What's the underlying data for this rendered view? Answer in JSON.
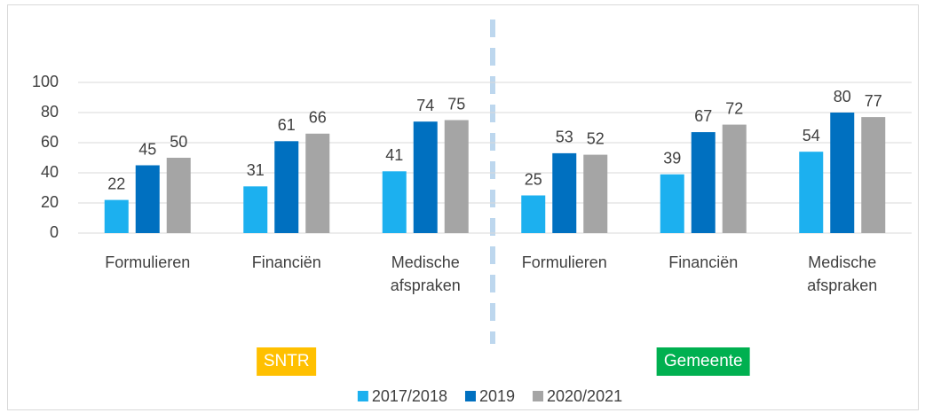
{
  "chart_data": {
    "type": "bar",
    "categories": [
      "Formulieren",
      "Financiën",
      "Medische afspraken",
      "Formulieren",
      "Financiën",
      "Medische afspraken"
    ],
    "series": [
      {
        "name": "2017/2018",
        "color": "#1cb0ef",
        "values": [
          22,
          31,
          41,
          25,
          39,
          54
        ]
      },
      {
        "name": "2019",
        "color": "#0070c0",
        "values": [
          45,
          61,
          74,
          53,
          67,
          80
        ]
      },
      {
        "name": "2020/2021",
        "color": "#a5a5a5",
        "values": [
          50,
          66,
          75,
          52,
          72,
          77
        ]
      }
    ],
    "ylim": [
      0,
      100
    ],
    "yticks": [
      0,
      20,
      40,
      60,
      80,
      100
    ],
    "grid": true,
    "annotations": [
      {
        "text": "SNTR",
        "color": "#ffc000"
      },
      {
        "text": "Gemeente",
        "color": "#00b050"
      }
    ],
    "legend": "bottom"
  }
}
